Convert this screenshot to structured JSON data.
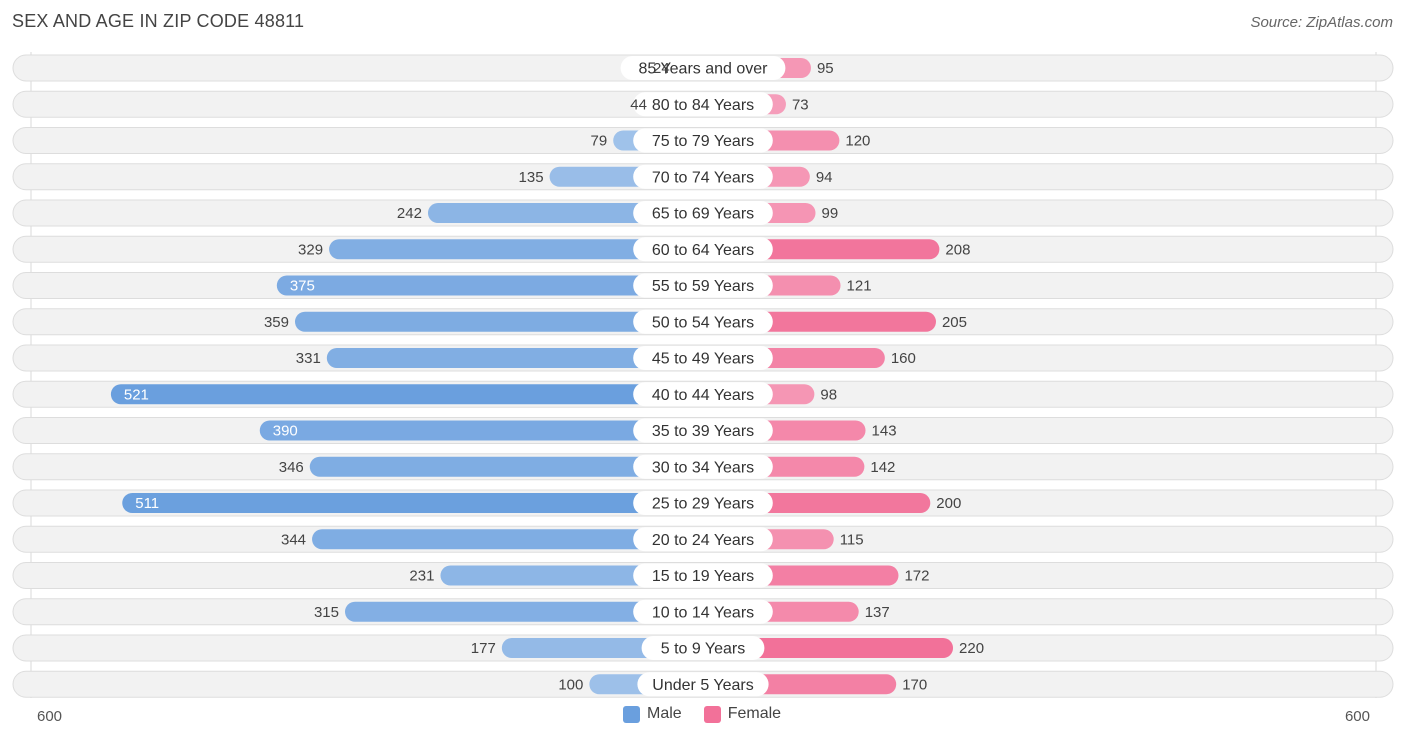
{
  "header": {
    "title": "SEX AND AGE IN ZIP CODE 48811",
    "source": "Source: ZipAtlas.com"
  },
  "colors": {
    "male_light": "#a9c8ec",
    "male_dark": "#6a9fde",
    "female_light": "#f7b3ca",
    "female_dark": "#f27199",
    "row_bg": "#f2f2f2",
    "row_border": "#dddddd"
  },
  "chart_data": {
    "type": "bar",
    "orientation": "horizontal-diverging",
    "title": "SEX AND AGE IN ZIP CODE 48811",
    "categories": [
      "85 Years and over",
      "80 to 84 Years",
      "75 to 79 Years",
      "70 to 74 Years",
      "65 to 69 Years",
      "60 to 64 Years",
      "55 to 59 Years",
      "50 to 54 Years",
      "45 to 49 Years",
      "40 to 44 Years",
      "35 to 39 Years",
      "30 to 34 Years",
      "25 to 29 Years",
      "20 to 24 Years",
      "15 to 19 Years",
      "10 to 14 Years",
      "5 to 9 Years",
      "Under 5 Years"
    ],
    "series": [
      {
        "name": "Male",
        "values": [
          24,
          44,
          79,
          135,
          242,
          329,
          375,
          359,
          331,
          521,
          390,
          346,
          511,
          344,
          231,
          315,
          177,
          100
        ]
      },
      {
        "name": "Female",
        "values": [
          95,
          73,
          120,
          94,
          99,
          208,
          121,
          205,
          160,
          98,
          143,
          142,
          200,
          115,
          172,
          137,
          220,
          170
        ]
      }
    ],
    "xlim": [
      -600,
      600
    ],
    "axis_labels": {
      "left": "600",
      "right": "600"
    },
    "legend": {
      "placement": "bottom-center",
      "entries": [
        "Male",
        "Female"
      ]
    }
  }
}
